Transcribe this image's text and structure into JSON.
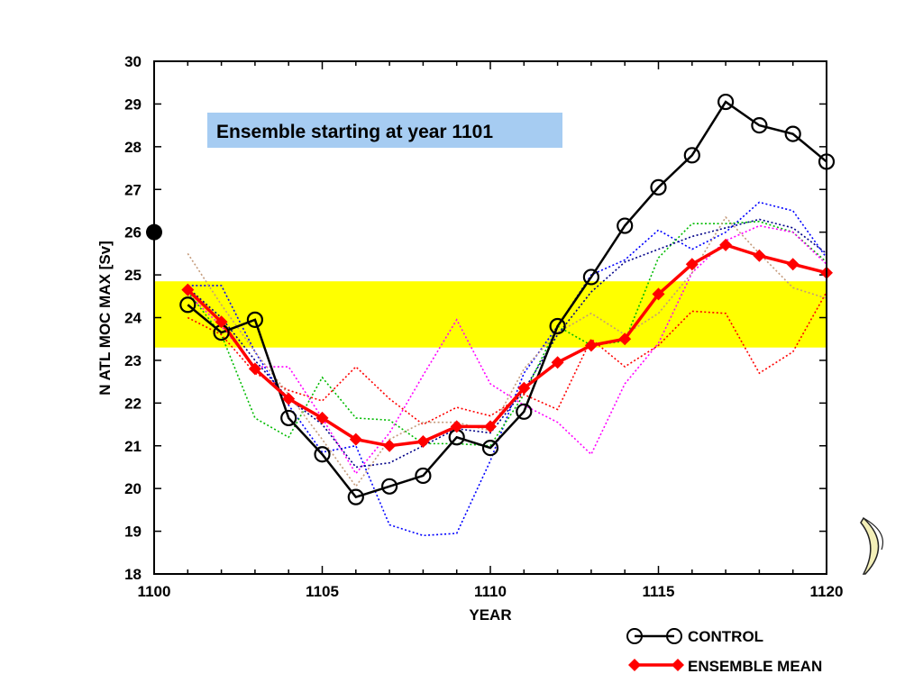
{
  "chart_data": {
    "type": "line",
    "title": "",
    "xlabel": "YEAR",
    "ylabel": "N ATL MOC MAX  [Sv]",
    "xlim": [
      1100,
      1120
    ],
    "ylim": [
      18,
      30
    ],
    "xticks": [
      "1100",
      "1105",
      "1110",
      "1115",
      "1120"
    ],
    "yticks": [
      "18",
      "19",
      "20",
      "21",
      "22",
      "23",
      "24",
      "25",
      "26",
      "27",
      "28",
      "29",
      "30"
    ],
    "annotation": "Ensemble starting at year 1101",
    "highlight_band": {
      "y_range": [
        23.3,
        24.85
      ],
      "color": "#ffff00"
    },
    "start_marker": {
      "x": 1100,
      "y": 26.0
    },
    "legend_position": "bottom-right",
    "x": [
      1101,
      1102,
      1103,
      1104,
      1105,
      1106,
      1107,
      1108,
      1109,
      1110,
      1111,
      1112,
      1113,
      1114,
      1115,
      1116,
      1117,
      1118,
      1119,
      1120
    ],
    "series": [
      {
        "name": "CONTROL",
        "color": "#000000",
        "marker": "open-circle",
        "values": [
          24.3,
          23.65,
          23.95,
          21.65,
          20.8,
          19.8,
          20.05,
          20.3,
          21.2,
          20.95,
          21.8,
          23.8,
          24.95,
          26.15,
          27.05,
          27.8,
          29.05,
          28.5,
          28.3,
          27.65
        ]
      },
      {
        "name": "ENSEMBLE MEAN",
        "color": "#ff0000",
        "marker": "diamond",
        "values": [
          24.65,
          23.9,
          22.8,
          22.1,
          21.65,
          21.15,
          21.0,
          21.1,
          21.45,
          21.45,
          22.35,
          22.95,
          23.35,
          23.5,
          24.55,
          25.25,
          25.7,
          25.45,
          25.25,
          25.05
        ]
      },
      {
        "color": "#0000ff",
        "style": "dotted",
        "values": [
          24.75,
          24.75,
          23.2,
          21.95,
          20.85,
          21.0,
          19.15,
          18.9,
          18.95,
          20.65,
          22.7,
          23.8,
          25.0,
          25.35,
          26.05,
          25.6,
          26.0,
          26.7,
          26.5,
          25.4
        ]
      },
      {
        "color": "#00bb00",
        "style": "dotted",
        "values": [
          24.6,
          23.6,
          21.65,
          21.2,
          22.6,
          21.65,
          21.6,
          21.05,
          21.05,
          21.0,
          22.2,
          23.8,
          23.35,
          23.45,
          25.4,
          26.2,
          26.2,
          26.25,
          26.0,
          25.3
        ]
      },
      {
        "color": "#ff0000",
        "style": "dotted",
        "values": [
          24.0,
          23.6,
          22.7,
          22.3,
          22.05,
          22.85,
          22.1,
          21.5,
          21.9,
          21.7,
          22.2,
          21.85,
          23.5,
          22.85,
          23.35,
          24.15,
          24.1,
          22.7,
          23.2,
          24.6
        ]
      },
      {
        "color": "#ff00ff",
        "style": "dotted",
        "values": [
          24.55,
          23.8,
          22.85,
          22.85,
          21.65,
          20.35,
          21.3,
          22.65,
          23.95,
          22.45,
          21.95,
          21.55,
          20.8,
          22.45,
          23.4,
          25.05,
          25.8,
          26.15,
          26.0,
          25.25
        ]
      },
      {
        "color": "#c49a7a",
        "style": "dotted",
        "values": [
          25.5,
          24.3,
          23.2,
          22.2,
          21.15,
          20.05,
          21.15,
          21.55,
          21.55,
          21.35,
          22.8,
          23.65,
          24.1,
          23.6,
          24.1,
          25.05,
          26.35,
          25.5,
          24.7,
          24.45
        ]
      },
      {
        "color": "#000088",
        "style": "dotted",
        "values": [
          24.7,
          24.0,
          23.0,
          22.1,
          21.5,
          20.5,
          20.6,
          21.0,
          21.4,
          21.3,
          22.3,
          23.6,
          24.6,
          25.3,
          25.6,
          25.9,
          26.1,
          26.3,
          26.1,
          25.5
        ]
      }
    ]
  }
}
